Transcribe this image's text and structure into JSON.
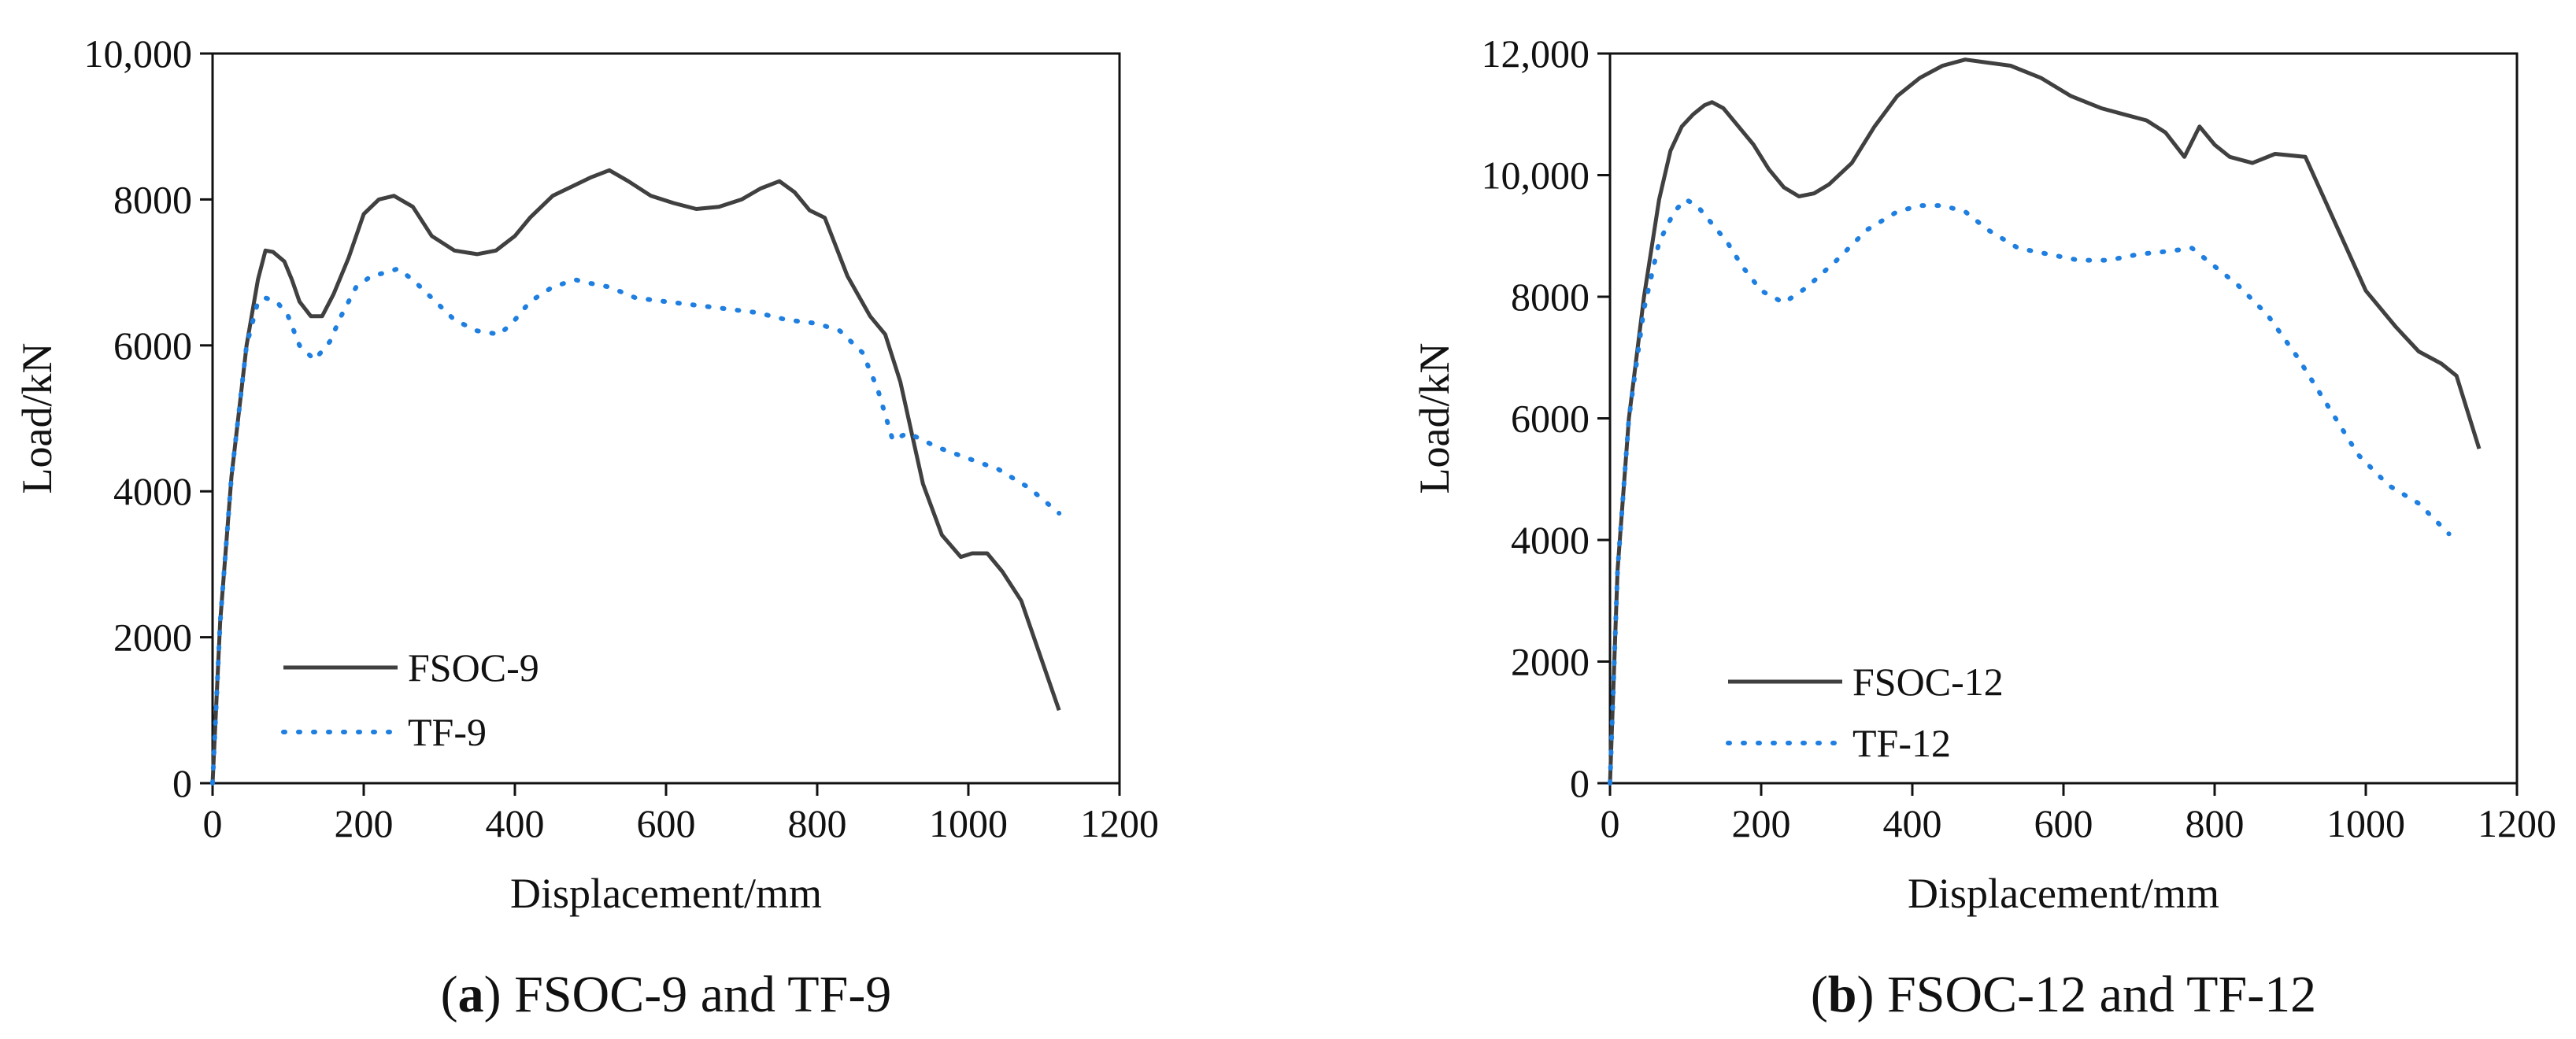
{
  "chart_data": [
    {
      "type": "line",
      "caption": {
        "letter": "a",
        "text": "FSOC-9 and TF-9"
      },
      "xlabel": "Displacement/mm",
      "ylabel": "Load/kN",
      "xlim": [
        0,
        1200
      ],
      "ylim": [
        0,
        10000
      ],
      "xticks": [
        0,
        200,
        400,
        600,
        800,
        1000,
        1200
      ],
      "yticks": [
        0,
        2000,
        4000,
        6000,
        8000,
        10000
      ],
      "ytick_labels": [
        "0",
        "2000",
        "4000",
        "6000",
        "8000",
        "10,000"
      ],
      "legend_position": "bottom-left",
      "series": [
        {
          "name": "FSOC-9",
          "style": "solid",
          "color": "#404040",
          "x": [
            0,
            10,
            25,
            45,
            60,
            70,
            80,
            95,
            105,
            115,
            130,
            145,
            160,
            180,
            200,
            220,
            240,
            265,
            290,
            320,
            350,
            375,
            400,
            420,
            450,
            480,
            500,
            525,
            550,
            580,
            610,
            640,
            670,
            700,
            725,
            750,
            770,
            790,
            810,
            840,
            870,
            890,
            910,
            940,
            965,
            990,
            1005,
            1025,
            1045,
            1070,
            1090,
            1120
          ],
          "y": [
            0,
            2200,
            4200,
            6000,
            6900,
            7300,
            7280,
            7150,
            6900,
            6600,
            6400,
            6400,
            6700,
            7200,
            7800,
            8000,
            8050,
            7900,
            7500,
            7300,
            7250,
            7300,
            7500,
            7750,
            8050,
            8200,
            8300,
            8400,
            8250,
            8050,
            7950,
            7870,
            7900,
            8000,
            8150,
            8250,
            8100,
            7850,
            7750,
            6950,
            6400,
            6150,
            5500,
            4100,
            3400,
            3100,
            3150,
            3150,
            2900,
            2500,
            1900,
            1000
          ]
        },
        {
          "name": "TF-9",
          "style": "dotted",
          "color": "#1e7fe0",
          "x": [
            0,
            10,
            25,
            45,
            60,
            70,
            85,
            100,
            115,
            135,
            155,
            170,
            190,
            210,
            230,
            245,
            265,
            290,
            320,
            350,
            380,
            400,
            420,
            450,
            480,
            500,
            525,
            560,
            600,
            640,
            680,
            720,
            760,
            800,
            830,
            860,
            880,
            900,
            920,
            960,
            1000,
            1040,
            1080,
            1120
          ],
          "y": [
            0,
            2200,
            4200,
            6000,
            6600,
            6650,
            6600,
            6400,
            6000,
            5800,
            6050,
            6400,
            6800,
            6950,
            7000,
            7050,
            6900,
            6650,
            6350,
            6200,
            6150,
            6350,
            6600,
            6800,
            6900,
            6850,
            6800,
            6650,
            6600,
            6550,
            6500,
            6450,
            6350,
            6300,
            6200,
            5900,
            5400,
            4700,
            4800,
            4600,
            4450,
            4300,
            4050,
            3700
          ]
        }
      ]
    },
    {
      "type": "line",
      "caption": {
        "letter": "b",
        "text": "FSOC-12 and TF-12"
      },
      "xlabel": "Displacement/mm",
      "ylabel": "Load/kN",
      "xlim": [
        0,
        1200
      ],
      "ylim": [
        0,
        12000
      ],
      "xticks": [
        0,
        200,
        400,
        600,
        800,
        1000,
        1200
      ],
      "yticks": [
        0,
        2000,
        4000,
        6000,
        8000,
        10000,
        12000
      ],
      "ytick_labels": [
        "0",
        "2000",
        "4000",
        "6000",
        "8000",
        "10,000",
        "12,000"
      ],
      "legend_position": "bottom-left",
      "series": [
        {
          "name": "FSOC-12",
          "style": "solid",
          "color": "#404040",
          "x": [
            0,
            10,
            25,
            45,
            65,
            80,
            95,
            110,
            125,
            135,
            150,
            170,
            190,
            210,
            230,
            250,
            270,
            290,
            320,
            350,
            380,
            410,
            440,
            470,
            500,
            530,
            570,
            610,
            650,
            680,
            710,
            735,
            760,
            780,
            800,
            820,
            850,
            880,
            920,
            960,
            1000,
            1040,
            1070,
            1100,
            1120,
            1150
          ],
          "y": [
            0,
            3500,
            6000,
            8000,
            9600,
            10400,
            10800,
            11000,
            11150,
            11200,
            11100,
            10800,
            10500,
            10100,
            9800,
            9650,
            9700,
            9850,
            10200,
            10800,
            11300,
            11600,
            11800,
            11900,
            11850,
            11800,
            11600,
            11300,
            11100,
            11000,
            10900,
            10700,
            10300,
            10800,
            10500,
            10300,
            10200,
            10350,
            10300,
            9200,
            8100,
            7500,
            7100,
            6900,
            6700,
            5500
          ]
        },
        {
          "name": "TF-12",
          "style": "dotted",
          "color": "#1e7fe0",
          "x": [
            0,
            10,
            25,
            45,
            65,
            85,
            100,
            115,
            135,
            155,
            175,
            200,
            230,
            260,
            300,
            340,
            380,
            410,
            440,
            470,
            500,
            540,
            580,
            620,
            660,
            700,
            740,
            770,
            800,
            830,
            870,
            910,
            950,
            990,
            1030,
            1070,
            1110
          ],
          "y": [
            0,
            3500,
            6000,
            7800,
            8900,
            9400,
            9600,
            9500,
            9200,
            8900,
            8500,
            8100,
            7900,
            8150,
            8600,
            9100,
            9400,
            9500,
            9500,
            9400,
            9100,
            8800,
            8700,
            8600,
            8600,
            8700,
            8750,
            8800,
            8500,
            8200,
            7700,
            7000,
            6200,
            5400,
            4900,
            4600,
            4100
          ]
        }
      ]
    }
  ]
}
